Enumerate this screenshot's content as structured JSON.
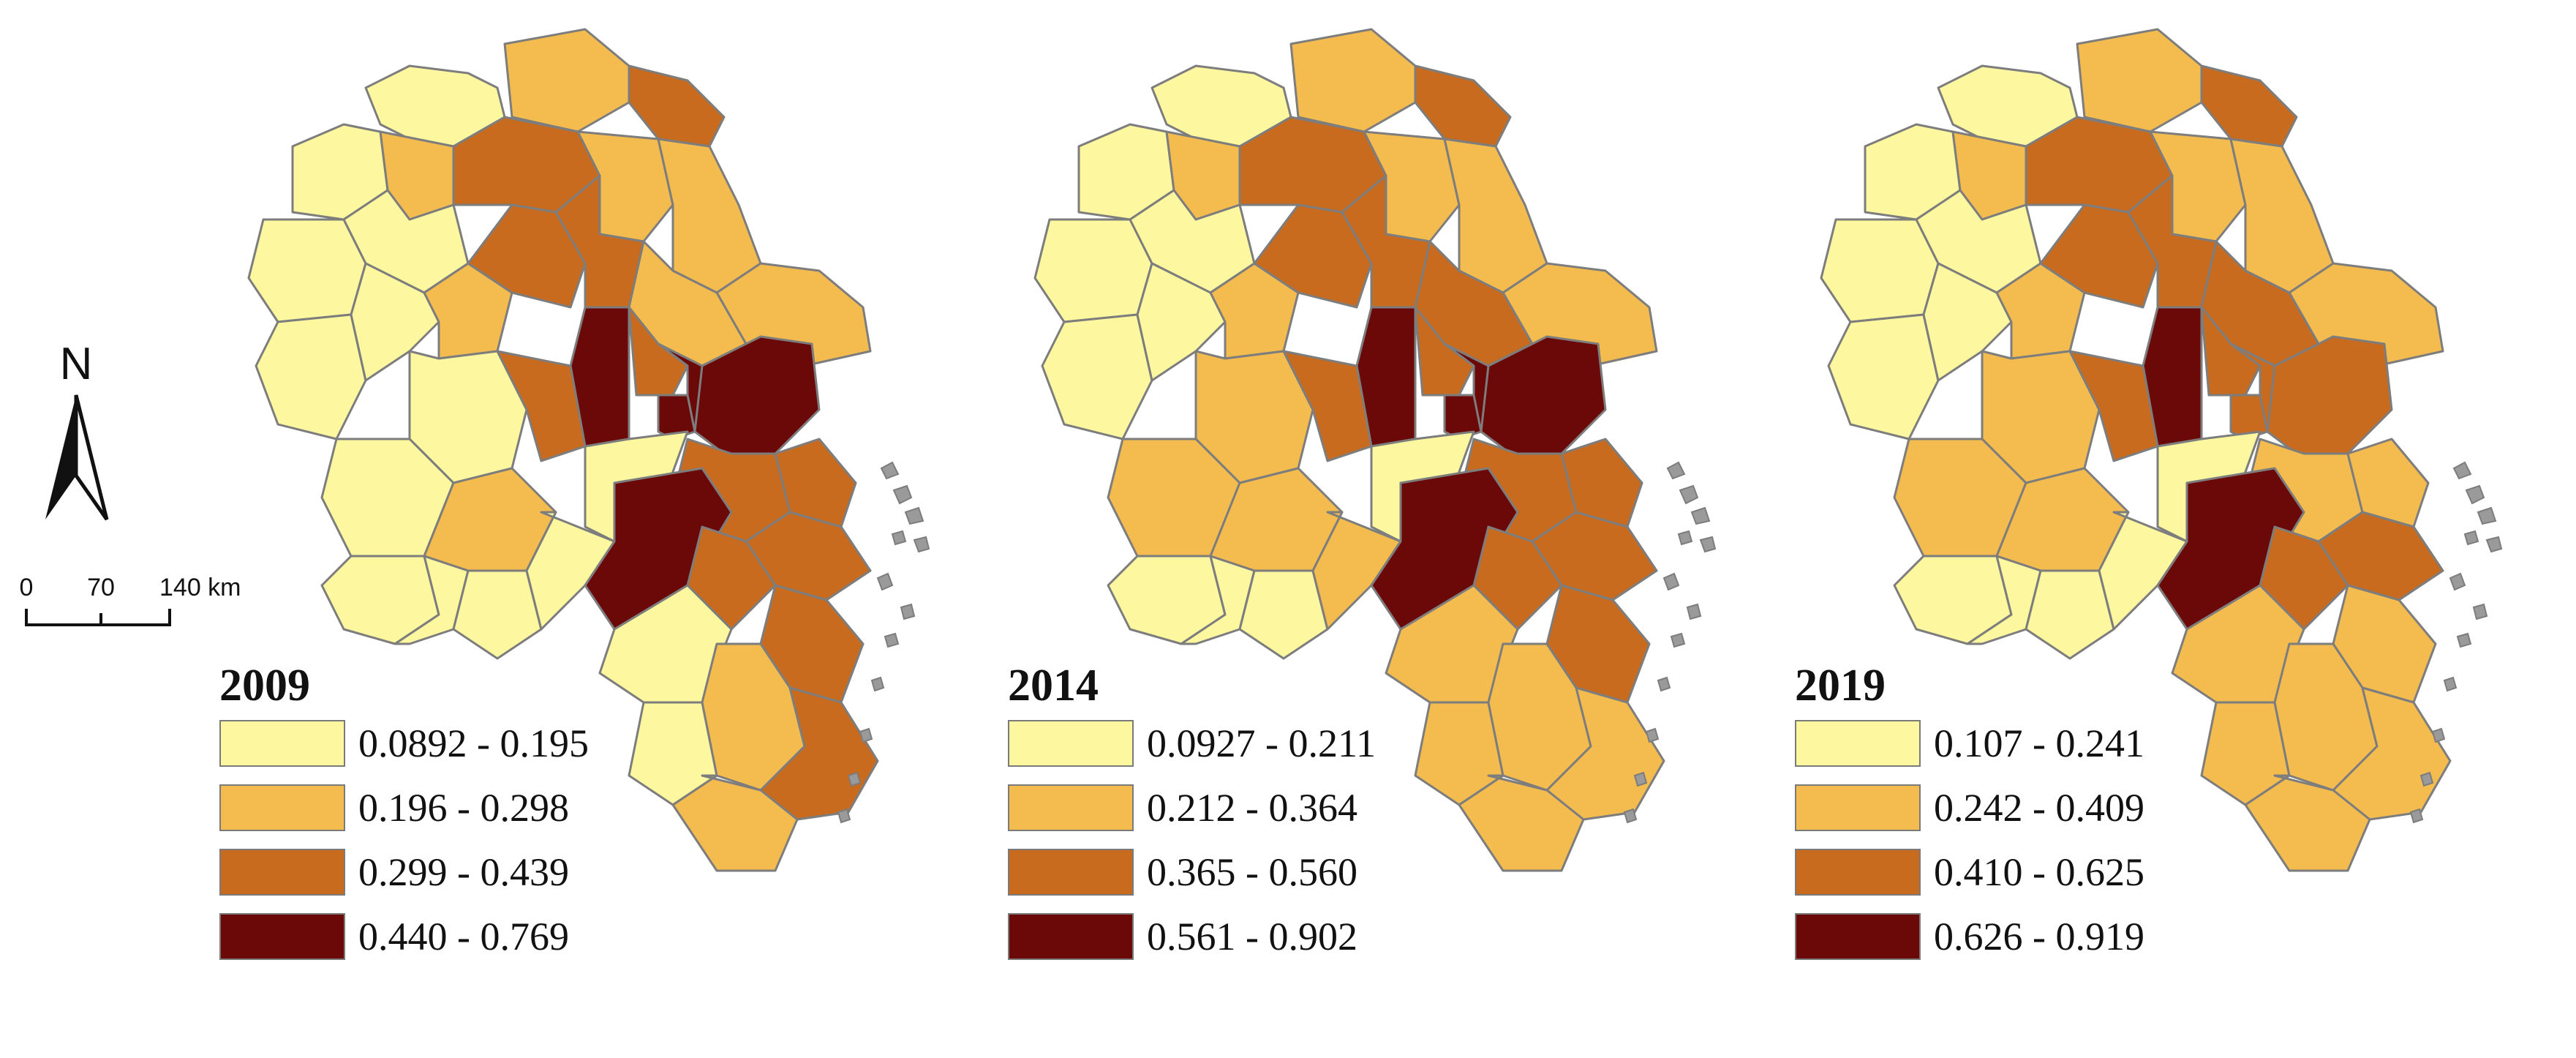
{
  "compass": {
    "north_label": "N"
  },
  "scalebar": {
    "ticks": [
      "0",
      "70",
      "140 km"
    ]
  },
  "colors": [
    "#fdf7a0",
    "#f4bc4f",
    "#c86b1f",
    "#6b0808"
  ],
  "panels": [
    {
      "year": "2009",
      "classes": [
        {
          "range": "0.0892 - 0.195",
          "color": "#fdf7a0"
        },
        {
          "range": "0.196 - 0.298",
          "color": "#f4bc4f"
        },
        {
          "range": "0.299 - 0.439",
          "color": "#c86b1f"
        },
        {
          "range": "0.440 - 0.769",
          "color": "#6b0808"
        }
      ],
      "regions": [
        0,
        1,
        2,
        0,
        1,
        2,
        0,
        0,
        1,
        1,
        1,
        0,
        0,
        1,
        2,
        2,
        1,
        0,
        3,
        2,
        3,
        2,
        0,
        3,
        3,
        0,
        1,
        2,
        2,
        0,
        0,
        0,
        0,
        3,
        2,
        2,
        2,
        0,
        0,
        1,
        2,
        1
      ]
    },
    {
      "year": "2014",
      "classes": [
        {
          "range": "0.0927 - 0.211",
          "color": "#fdf7a0"
        },
        {
          "range": "0.212 - 0.364",
          "color": "#f4bc4f"
        },
        {
          "range": "0.365 - 0.560",
          "color": "#c86b1f"
        },
        {
          "range": "0.561 - 0.902",
          "color": "#6b0808"
        }
      ],
      "regions": [
        0,
        1,
        2,
        0,
        1,
        2,
        0,
        0,
        1,
        1,
        1,
        0,
        0,
        1,
        2,
        2,
        2,
        1,
        3,
        2,
        3,
        2,
        1,
        3,
        3,
        0,
        1,
        2,
        2,
        0,
        0,
        0,
        1,
        3,
        2,
        2,
        2,
        1,
        1,
        1,
        1,
        1
      ]
    },
    {
      "year": "2019",
      "classes": [
        {
          "range": "0.107 - 0.241",
          "color": "#fdf7a0"
        },
        {
          "range": "0.242 - 0.409",
          "color": "#f4bc4f"
        },
        {
          "range": "0.410 - 0.625",
          "color": "#c86b1f"
        },
        {
          "range": "0.626 - 0.919",
          "color": "#6b0808"
        }
      ],
      "regions": [
        0,
        1,
        2,
        0,
        1,
        2,
        0,
        0,
        1,
        1,
        1,
        0,
        0,
        1,
        2,
        2,
        2,
        1,
        3,
        2,
        2,
        2,
        1,
        2,
        2,
        0,
        1,
        1,
        1,
        0,
        0,
        0,
        0,
        3,
        2,
        2,
        1,
        1,
        1,
        1,
        1,
        1
      ]
    }
  ]
}
